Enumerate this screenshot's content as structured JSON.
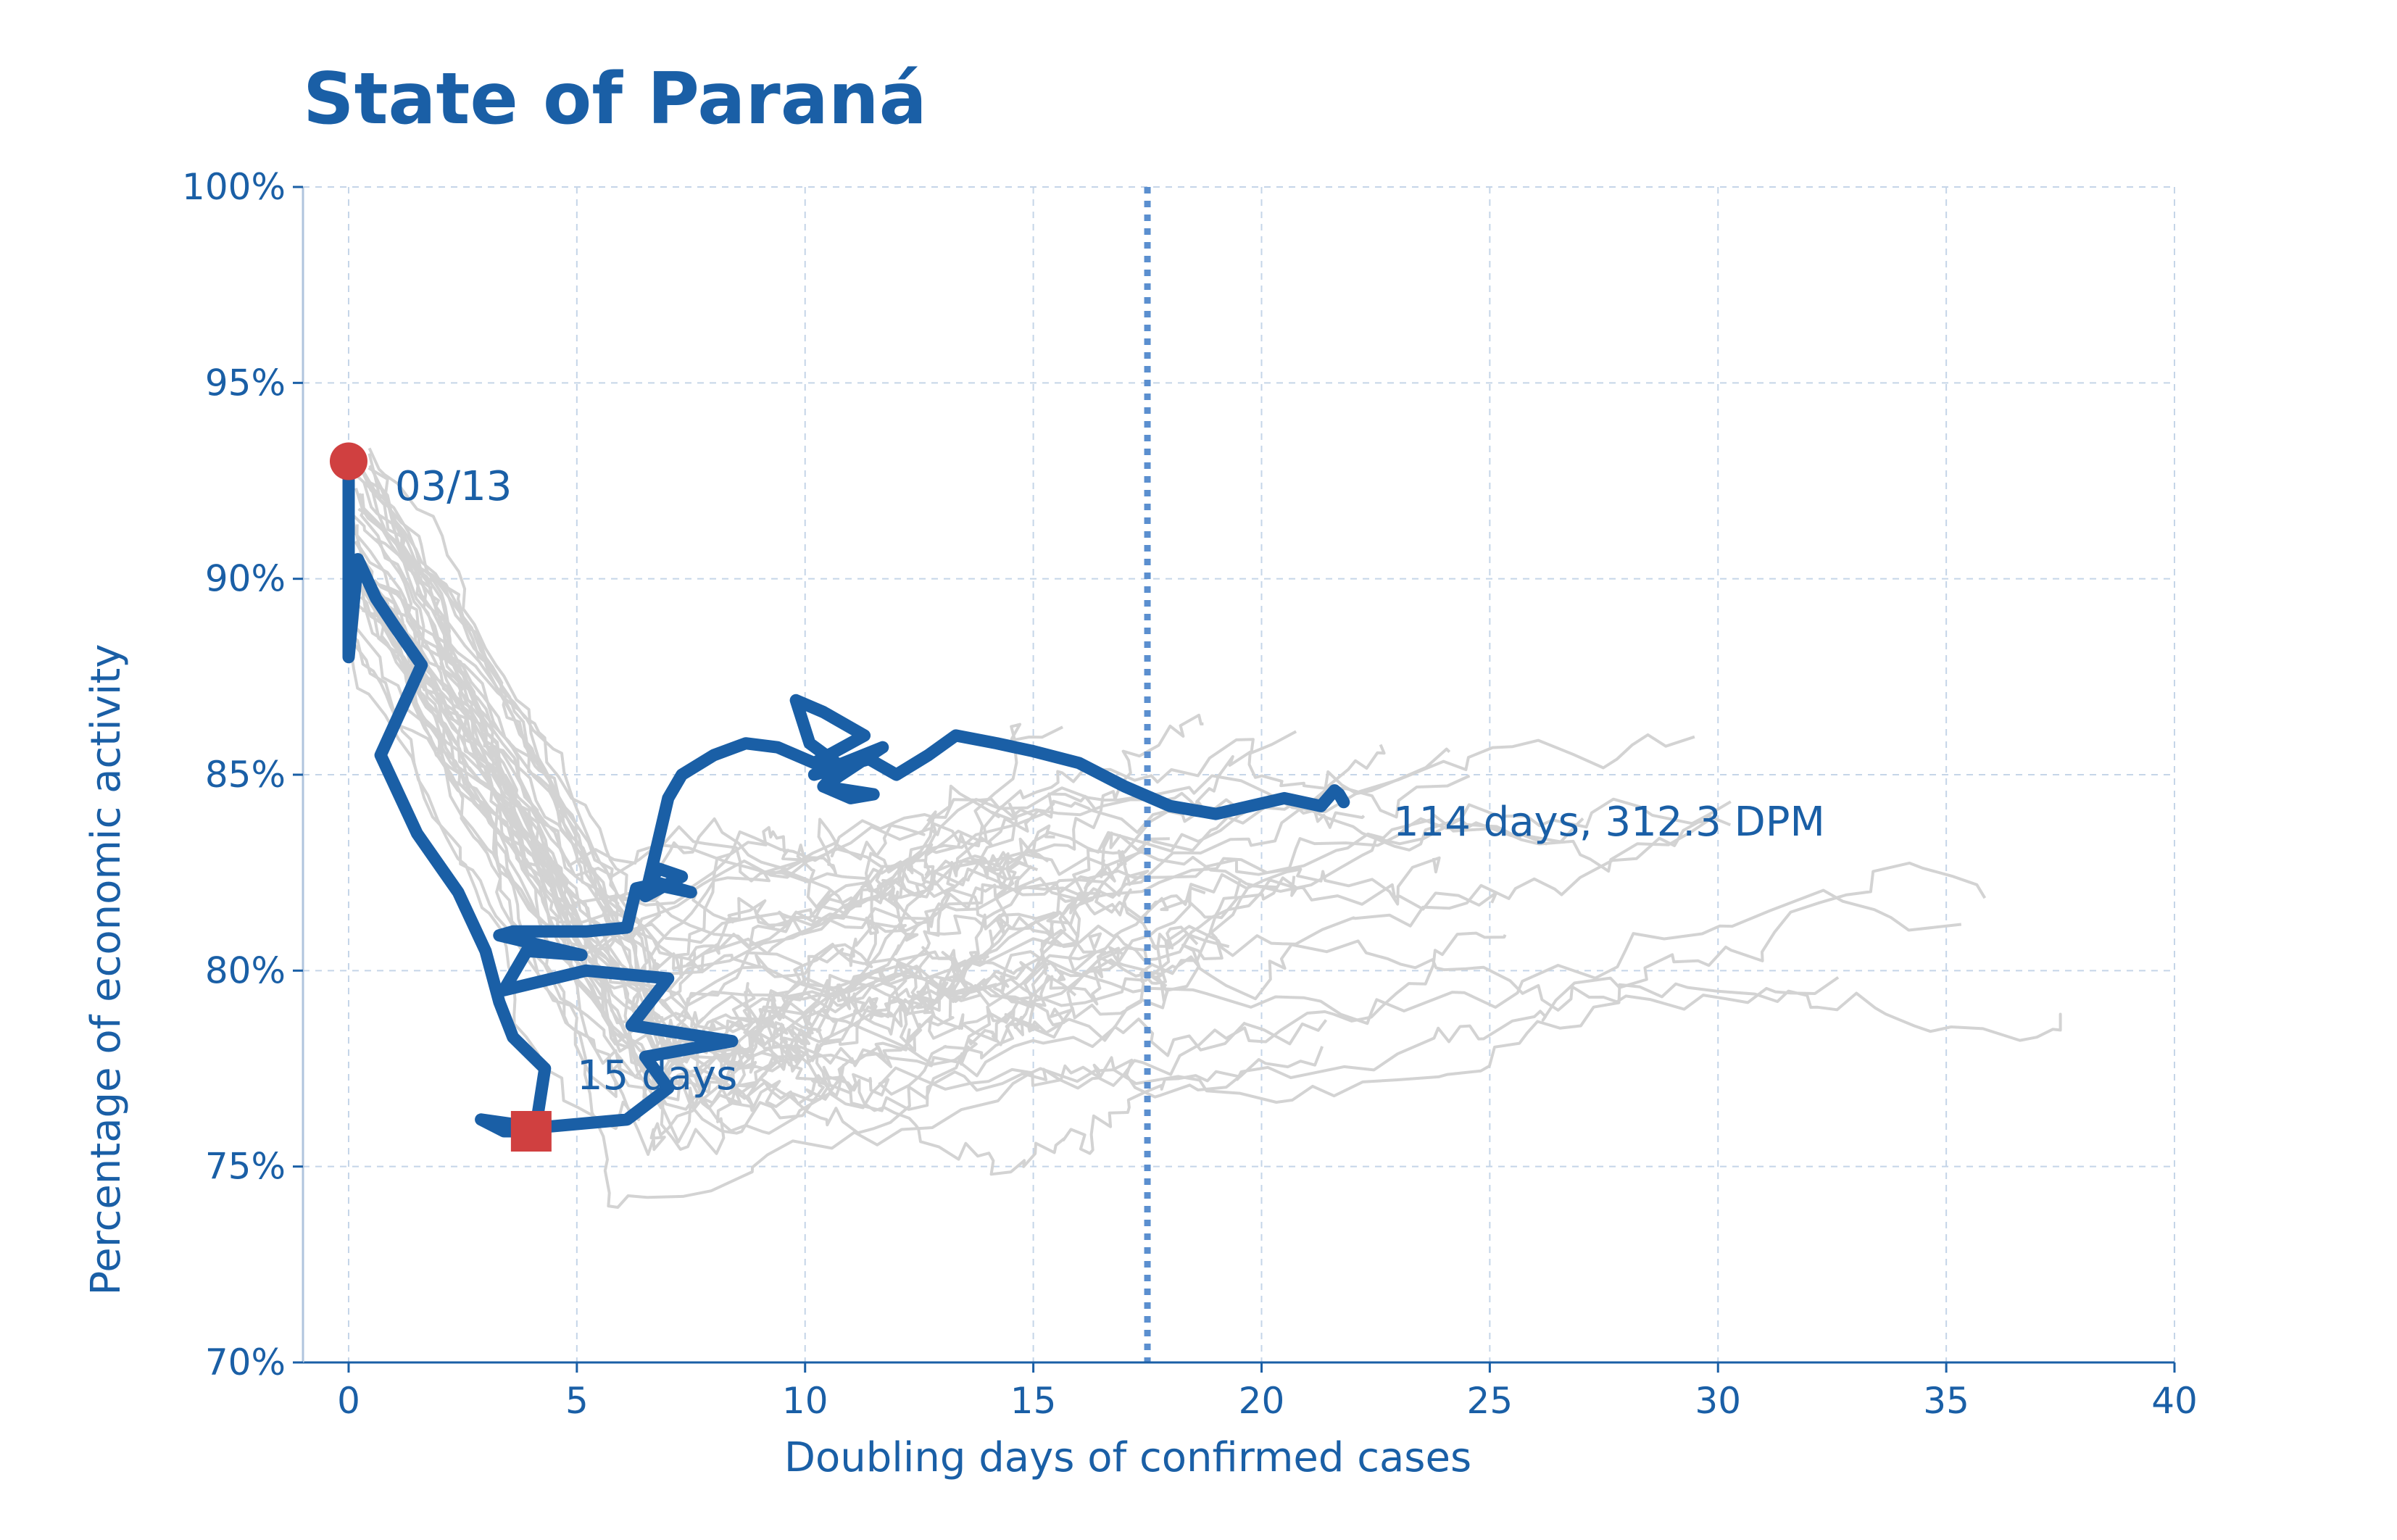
{
  "chart_data": {
    "type": "line",
    "title": "State of Paraná",
    "xlabel": "Doubling days of confirmed cases",
    "ylabel": "Percentage of economic activity",
    "xlim": [
      -1,
      40
    ],
    "ylim": [
      70,
      100
    ],
    "x_ticks": [
      0,
      5,
      10,
      15,
      20,
      25,
      30,
      35,
      40
    ],
    "x_tick_labels": [
      "0",
      "5",
      "10",
      "15",
      "20",
      "25",
      "30",
      "35",
      "40"
    ],
    "y_ticks": [
      70,
      75,
      80,
      85,
      90,
      95,
      100
    ],
    "y_tick_labels": [
      "70%",
      "75%",
      "80%",
      "85%",
      "90%",
      "95%",
      "100%"
    ],
    "grid": true,
    "reference_line_x": 17.5,
    "colors": {
      "highlight": "#1a5fa6",
      "background_series": "#d3d3d3",
      "marker": "#d04040",
      "grid": "#c5d5e8",
      "reference_line": "#5b8fcf"
    },
    "series": [
      {
        "highlight": true,
        "x": [
          0,
          0,
          0,
          0.2,
          0.6,
          1.0,
          1.6,
          0.7,
          1.5,
          2.4,
          3.0,
          3.3,
          3.6,
          4.3,
          4.1,
          2.9,
          3.4,
          3.8,
          4.2,
          6.1,
          7.0,
          6.5,
          8.4,
          6.2,
          7.0,
          5.2,
          3.4,
          3.9,
          5.1,
          3.3,
          3.6,
          5.2,
          6.1,
          6.3,
          6.7,
          7.5,
          6.6,
          6.8,
          7.3,
          6.5,
          7.0,
          7.3,
          8.0,
          8.7,
          9.4,
          10.2,
          11.3,
          10.4,
          9.8,
          10.1,
          10.8,
          10.4,
          11.0,
          11.5,
          10.4,
          11.7,
          10.2,
          11.4,
          12.0,
          12.7,
          13.3,
          14.2,
          15.0,
          16.0,
          17.0,
          18.0,
          19.0,
          20.5,
          21.3,
          21.6,
          21.7,
          21.8
        ],
        "y": [
          93.0,
          91.0,
          88.0,
          90.5,
          89.5,
          88.8,
          87.8,
          85.5,
          83.5,
          82.0,
          80.5,
          79.2,
          78.3,
          77.5,
          76.0,
          76.2,
          75.9,
          75.9,
          76.0,
          76.2,
          77.0,
          77.8,
          78.2,
          78.6,
          79.8,
          80.0,
          79.5,
          80.5,
          80.4,
          80.9,
          81.0,
          81.0,
          81.1,
          82.1,
          82.2,
          82.0,
          82.3,
          82.6,
          82.4,
          81.9,
          84.4,
          85.0,
          85.5,
          85.8,
          85.7,
          85.3,
          86.0,
          86.6,
          86.9,
          85.8,
          85.2,
          84.7,
          84.4,
          84.5,
          84.7,
          85.7,
          85.0,
          85.4,
          85.0,
          85.5,
          86.0,
          85.8,
          85.6,
          85.3,
          84.7,
          84.2,
          84.0,
          84.4,
          84.2,
          84.6,
          84.5,
          84.3
        ]
      }
    ],
    "start_marker": {
      "x": 0,
      "y": 93.0,
      "label": "03/13"
    },
    "min_marker": {
      "x": 4.0,
      "y": 75.9,
      "label": "15 days"
    },
    "end_label": "114 days, 312.3 DPM"
  }
}
